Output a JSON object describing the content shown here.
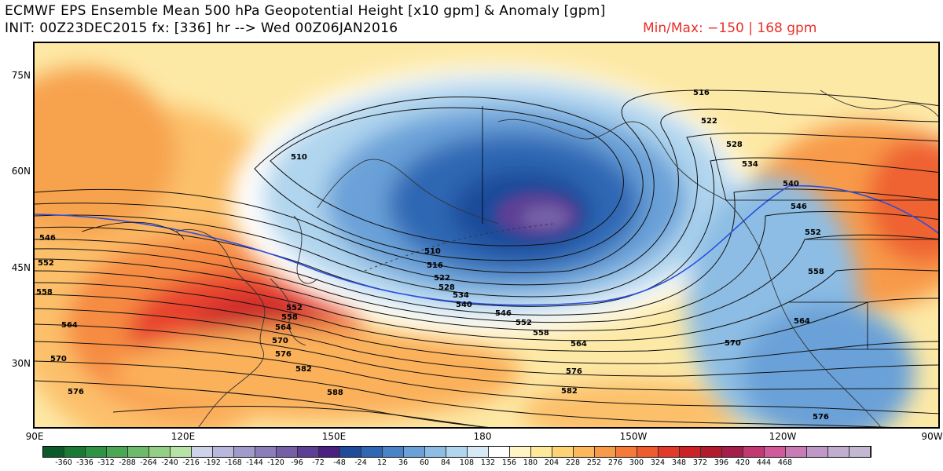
{
  "title_line1": "ECMWF EPS Ensemble Mean 500 hPa Geopotential Height [x10 gpm] & Anomaly [gpm]",
  "title_line2": "INIT: 00Z23DEC2015 fx: [336] hr --> Wed 00Z06JAN2016",
  "minmax_text": "Min/Max:  −150 |  168 gpm",
  "lat_labels": [
    "75N",
    "60N",
    "45N",
    "30N"
  ],
  "lon_labels": [
    "90E",
    "120E",
    "150E",
    "180",
    "150W",
    "120W",
    "90W"
  ],
  "contour_labels": [
    "510",
    "516",
    "522",
    "528",
    "534",
    "540",
    "546",
    "552",
    "558",
    "564",
    "570",
    "576",
    "582",
    "588"
  ],
  "colorbar": {
    "labels": [
      "-360",
      "-336",
      "-312",
      "-288",
      "-264",
      "-240",
      "-216",
      "-192",
      "-168",
      "-144",
      "-120",
      "-96",
      "-72",
      "-48",
      "-24",
      "12",
      "36",
      "60",
      "84",
      "108",
      "132",
      "156",
      "180",
      "204",
      "228",
      "252",
      "276",
      "300",
      "324",
      "348",
      "372",
      "396",
      "420",
      "444",
      "468"
    ],
    "colors": [
      "#0a5a2a",
      "#1a7a35",
      "#2e9444",
      "#4aa855",
      "#6dbb6a",
      "#94cf86",
      "#b9e2a6",
      "#cfd3ea",
      "#b9b8dc",
      "#a19bcb",
      "#8a7dba",
      "#7560a8",
      "#5d3f95",
      "#4a2080",
      "#1f4b9a",
      "#2f67b4",
      "#4a84c8",
      "#6aa1d8",
      "#8dbde4",
      "#b0d5ee",
      "#d6eaf6",
      "#ffffff",
      "#fff4c4",
      "#fee89a",
      "#fdd374",
      "#fcb85a",
      "#f99a48",
      "#f57a3a",
      "#ef5a2f",
      "#e23a28",
      "#cc2226",
      "#b31a2c",
      "#a51d4a",
      "#c43872",
      "#d15a9a",
      "#c97bb6",
      "#bf98c8",
      "#c0aecf",
      "#c3b7d2"
    ]
  }
}
